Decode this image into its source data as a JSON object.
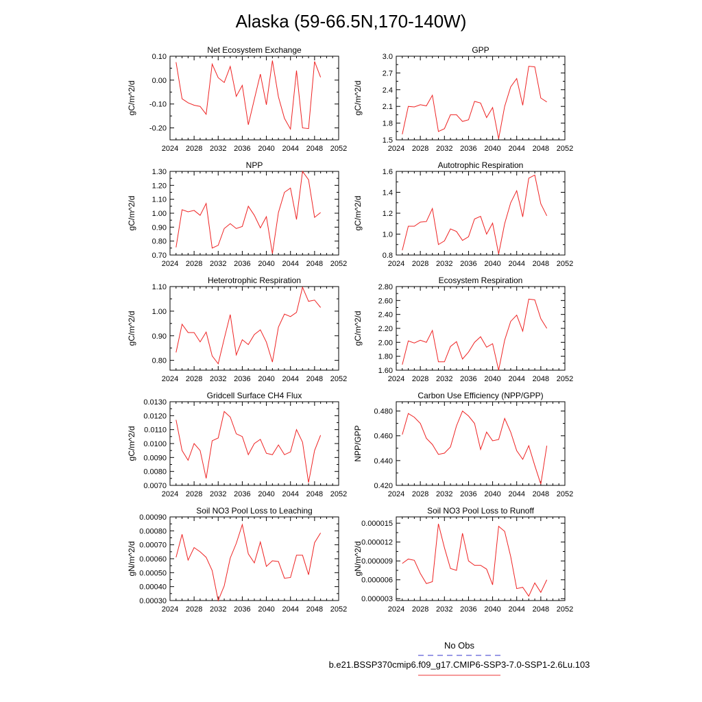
{
  "figure": {
    "title": "Alaska (59-66.5N,170-140W)",
    "legend": [
      {
        "label": "No Obs",
        "color": "#3333cc",
        "dash": true
      },
      {
        "label": "b.e21.BSSP370cmip6.f09_g17.CMIP6-SSP3-7.0-SSP1-2.6Lu.103",
        "color": "#ee3333",
        "dash": false
      }
    ]
  },
  "chart_data": [
    {
      "type": "line",
      "title": "Net Ecosystem Exchange",
      "ylabel": "gC/m^2/d",
      "xlim": [
        2024,
        2052
      ],
      "xticks": [
        "2024",
        "2028",
        "2032",
        "2036",
        "2040",
        "2044",
        "2048",
        "2052"
      ],
      "ylim": [
        -0.25,
        0.1
      ],
      "yticks": [
        "-0.20",
        "-0.10",
        "0.00",
        "0.10"
      ],
      "x": [
        2025,
        2026,
        2027,
        2028,
        2029,
        2030,
        2031,
        2032,
        2033,
        2034,
        2035,
        2036,
        2037,
        2038,
        2039,
        2040,
        2041,
        2042,
        2043,
        2044,
        2045,
        2046,
        2047,
        2048,
        2049
      ],
      "series": [
        {
          "color": "#ee2222",
          "values": [
            0.075,
            -0.078,
            -0.095,
            -0.105,
            -0.11,
            -0.143,
            0.067,
            0.01,
            -0.01,
            0.057,
            -0.068,
            -0.022,
            -0.187,
            -0.08,
            0.025,
            -0.103,
            0.082,
            -0.07,
            -0.16,
            -0.205,
            0.04,
            -0.2,
            -0.203,
            0.078,
            0.012
          ]
        }
      ]
    },
    {
      "type": "line",
      "title": "GPP",
      "ylabel": "gC/m^2/d",
      "xlim": [
        2024,
        2052
      ],
      "xticks": [
        "2024",
        "2028",
        "2032",
        "2036",
        "2040",
        "2044",
        "2048",
        "2052"
      ],
      "ylim": [
        1.5,
        3.0
      ],
      "yticks": [
        "1.5",
        "1.8",
        "2.1",
        "2.4",
        "2.7",
        "3.0"
      ],
      "x": [
        2025,
        2026,
        2027,
        2028,
        2029,
        2030,
        2031,
        2032,
        2033,
        2034,
        2035,
        2036,
        2037,
        2038,
        2039,
        2040,
        2041,
        2042,
        2043,
        2044,
        2045,
        2046,
        2047,
        2048,
        2049
      ],
      "series": [
        {
          "color": "#ee2222",
          "values": [
            1.6,
            2.1,
            2.09,
            2.13,
            2.11,
            2.3,
            1.65,
            1.7,
            1.95,
            1.95,
            1.83,
            1.86,
            2.19,
            2.16,
            1.9,
            2.08,
            1.52,
            2.1,
            2.45,
            2.6,
            2.12,
            2.82,
            2.81,
            2.25,
            2.18
          ]
        }
      ]
    },
    {
      "type": "line",
      "title": "NPP",
      "ylabel": "gC/m^2/d",
      "xlim": [
        2024,
        2052
      ],
      "xticks": [
        "2024",
        "2028",
        "2032",
        "2036",
        "2040",
        "2044",
        "2048",
        "2052"
      ],
      "ylim": [
        0.7,
        1.3
      ],
      "yticks": [
        "0.70",
        "0.80",
        "0.90",
        "1.00",
        "1.10",
        "1.20",
        "1.30"
      ],
      "x": [
        2025,
        2026,
        2027,
        2028,
        2029,
        2030,
        2031,
        2032,
        2033,
        2034,
        2035,
        2036,
        2037,
        2038,
        2039,
        2040,
        2041,
        2042,
        2043,
        2044,
        2045,
        2046,
        2047,
        2048,
        2049
      ],
      "series": [
        {
          "color": "#ee2222",
          "values": [
            0.755,
            1.025,
            1.01,
            1.02,
            0.985,
            1.07,
            0.75,
            0.77,
            0.89,
            0.925,
            0.89,
            0.905,
            1.05,
            0.985,
            0.895,
            0.975,
            0.71,
            1.005,
            1.15,
            1.18,
            0.955,
            1.3,
            1.24,
            0.97,
            1.005
          ]
        }
      ]
    },
    {
      "type": "line",
      "title": "Autotrophic Respiration",
      "ylabel": "gC/m^2/d",
      "xlim": [
        2024,
        2052
      ],
      "xticks": [
        "2024",
        "2028",
        "2032",
        "2036",
        "2040",
        "2044",
        "2048",
        "2052"
      ],
      "ylim": [
        0.8,
        1.6
      ],
      "yticks": [
        "0.8",
        "1.0",
        "1.2",
        "1.4",
        "1.6"
      ],
      "x": [
        2025,
        2026,
        2027,
        2028,
        2029,
        2030,
        2031,
        2032,
        2033,
        2034,
        2035,
        2036,
        2037,
        2038,
        2039,
        2040,
        2041,
        2042,
        2043,
        2044,
        2045,
        2046,
        2047,
        2048,
        2049
      ],
      "series": [
        {
          "color": "#ee2222",
          "values": [
            0.845,
            1.075,
            1.075,
            1.115,
            1.12,
            1.245,
            0.9,
            0.935,
            1.05,
            1.025,
            0.94,
            0.975,
            1.145,
            1.17,
            1.0,
            1.105,
            0.81,
            1.1,
            1.3,
            1.415,
            1.165,
            1.535,
            1.565,
            1.29,
            1.175
          ]
        }
      ]
    },
    {
      "type": "line",
      "title": "Heterotrophic Respiration",
      "ylabel": "gC/m^2/d",
      "xlim": [
        2024,
        2052
      ],
      "xticks": [
        "2024",
        "2028",
        "2032",
        "2036",
        "2040",
        "2044",
        "2048",
        "2052"
      ],
      "ylim": [
        0.76,
        1.1
      ],
      "yticks": [
        "0.80",
        "0.90",
        "1.00",
        "1.10"
      ],
      "x": [
        2025,
        2026,
        2027,
        2028,
        2029,
        2030,
        2031,
        2032,
        2033,
        2034,
        2035,
        2036,
        2037,
        2038,
        2039,
        2040,
        2041,
        2042,
        2043,
        2044,
        2045,
        2046,
        2047,
        2048,
        2049
      ],
      "series": [
        {
          "color": "#ee2222",
          "values": [
            0.832,
            0.947,
            0.913,
            0.913,
            0.875,
            0.915,
            0.818,
            0.786,
            0.888,
            0.986,
            0.822,
            0.884,
            0.864,
            0.905,
            0.924,
            0.874,
            0.793,
            0.935,
            0.988,
            0.978,
            0.995,
            1.097,
            1.04,
            1.045,
            1.015
          ]
        }
      ]
    },
    {
      "type": "line",
      "title": "Ecosystem Respiration",
      "ylabel": "gC/m^2/d",
      "xlim": [
        2024,
        2052
      ],
      "xticks": [
        "2024",
        "2028",
        "2032",
        "2036",
        "2040",
        "2044",
        "2048",
        "2052"
      ],
      "ylim": [
        1.6,
        2.8
      ],
      "yticks": [
        "1.60",
        "1.80",
        "2.00",
        "2.20",
        "2.40",
        "2.60",
        "2.80"
      ],
      "x": [
        2025,
        2026,
        2027,
        2028,
        2029,
        2030,
        2031,
        2032,
        2033,
        2034,
        2035,
        2036,
        2037,
        2038,
        2039,
        2040,
        2041,
        2042,
        2043,
        2044,
        2045,
        2046,
        2047,
        2048,
        2049
      ],
      "series": [
        {
          "color": "#ee2222",
          "values": [
            1.68,
            2.02,
            1.99,
            2.03,
            2.0,
            2.17,
            1.72,
            1.72,
            1.94,
            2.01,
            1.76,
            1.86,
            2.0,
            2.08,
            1.93,
            1.98,
            1.6,
            2.03,
            2.3,
            2.39,
            2.16,
            2.62,
            2.61,
            2.34,
            2.2
          ]
        }
      ]
    },
    {
      "type": "line",
      "title": "Gridcell Surface CH4 Flux",
      "ylabel": "gC/m^2/d",
      "xlim": [
        2024,
        2052
      ],
      "xticks": [
        "2024",
        "2028",
        "2032",
        "2036",
        "2040",
        "2044",
        "2048",
        "2052"
      ],
      "ylim": [
        0.007,
        0.013
      ],
      "yticks": [
        "0.0070",
        "0.0080",
        "0.0090",
        "0.0100",
        "0.0110",
        "0.0120",
        "0.0130"
      ],
      "x": [
        2025,
        2026,
        2027,
        2028,
        2029,
        2030,
        2031,
        2032,
        2033,
        2034,
        2035,
        2036,
        2037,
        2038,
        2039,
        2040,
        2041,
        2042,
        2043,
        2044,
        2045,
        2046,
        2047,
        2048,
        2049
      ],
      "series": [
        {
          "color": "#ee2222",
          "values": [
            0.0117,
            0.0095,
            0.0088,
            0.01,
            0.0095,
            0.0075,
            0.0102,
            0.0104,
            0.0123,
            0.0119,
            0.0107,
            0.0105,
            0.0092,
            0.01,
            0.0103,
            0.0093,
            0.0092,
            0.0099,
            0.0092,
            0.0094,
            0.011,
            0.0101,
            0.0072,
            0.0095,
            0.0106
          ]
        }
      ]
    },
    {
      "type": "line",
      "title": "Carbon Use Efficiency (NPP/GPP)",
      "ylabel": "NPP/GPP",
      "xlim": [
        2024,
        2052
      ],
      "xticks": [
        "2024",
        "2028",
        "2032",
        "2036",
        "2040",
        "2044",
        "2048",
        "2052"
      ],
      "ylim": [
        0.42,
        0.4875
      ],
      "yticks": [
        "0.420",
        "0.440",
        "0.460",
        "0.480"
      ],
      "x": [
        2025,
        2026,
        2027,
        2028,
        2029,
        2030,
        2031,
        2032,
        2033,
        2034,
        2035,
        2036,
        2037,
        2038,
        2039,
        2040,
        2041,
        2042,
        2043,
        2044,
        2045,
        2046,
        2047,
        2048,
        2049
      ],
      "series": [
        {
          "color": "#ee2222",
          "values": [
            0.461,
            0.478,
            0.475,
            0.47,
            0.458,
            0.453,
            0.445,
            0.446,
            0.451,
            0.468,
            0.48,
            0.476,
            0.47,
            0.449,
            0.463,
            0.456,
            0.457,
            0.474,
            0.463,
            0.448,
            0.441,
            0.452,
            0.436,
            0.421,
            0.452
          ]
        }
      ]
    },
    {
      "type": "line",
      "title": "Soil NO3 Pool Loss to Leaching",
      "ylabel": "gN/m^2/d",
      "xlim": [
        2024,
        2052
      ],
      "xticks": [
        "2024",
        "2028",
        "2032",
        "2036",
        "2040",
        "2044",
        "2048",
        "2052"
      ],
      "ylim": [
        0.0003,
        0.0009
      ],
      "yticks": [
        "0.00030",
        "0.00040",
        "0.00050",
        "0.00060",
        "0.00070",
        "0.00080",
        "0.00090"
      ],
      "x": [
        2025,
        2026,
        2027,
        2028,
        2029,
        2030,
        2031,
        2032,
        2033,
        2034,
        2035,
        2036,
        2037,
        2038,
        2039,
        2040,
        2041,
        2042,
        2043,
        2044,
        2045,
        2046,
        2047,
        2048,
        2049
      ],
      "series": [
        {
          "color": "#ee2222",
          "values": [
            0.00061,
            0.000775,
            0.00059,
            0.00068,
            0.00065,
            0.00061,
            0.000515,
            0.0003,
            0.000405,
            0.000605,
            0.00071,
            0.000845,
            0.000635,
            0.00057,
            0.00072,
            0.000545,
            0.000585,
            0.00058,
            0.00046,
            0.000465,
            0.000625,
            0.000625,
            0.000485,
            0.000715,
            0.000785
          ]
        }
      ]
    },
    {
      "type": "line",
      "title": "Soil NO3 Pool Loss to Runoff",
      "ylabel": "gN/m^2/d",
      "xlim": [
        2024,
        2052
      ],
      "xticks": [
        "2024",
        "2028",
        "2032",
        "2036",
        "2040",
        "2044",
        "2048",
        "2052"
      ],
      "ylim": [
        2.7e-06,
        1.6e-05
      ],
      "yticks": [
        "0.000003",
        "0.000006",
        "0.000009",
        "0.000012",
        "0.000015"
      ],
      "x": [
        2025,
        2026,
        2027,
        2028,
        2029,
        2030,
        2031,
        2032,
        2033,
        2034,
        2035,
        2036,
        2037,
        2038,
        2039,
        2040,
        2041,
        2042,
        2043,
        2044,
        2045,
        2046,
        2047,
        2048,
        2049
      ],
      "series": [
        {
          "color": "#ee2222",
          "values": [
            8.6e-06,
            9.3e-06,
            9.1e-06,
            7e-06,
            5.4e-06,
            5.7e-06,
            1.49e-05,
            1.11e-05,
            7.8e-06,
            7.5e-06,
            1.34e-05,
            9e-06,
            8.3e-06,
            8.3e-06,
            7.7e-06,
            5.2e-06,
            1.45e-05,
            1.37e-05,
            9.7e-06,
            4.6e-06,
            4.8e-06,
            3.4e-06,
            5.5e-06,
            4e-06,
            6e-06
          ]
        }
      ]
    }
  ]
}
